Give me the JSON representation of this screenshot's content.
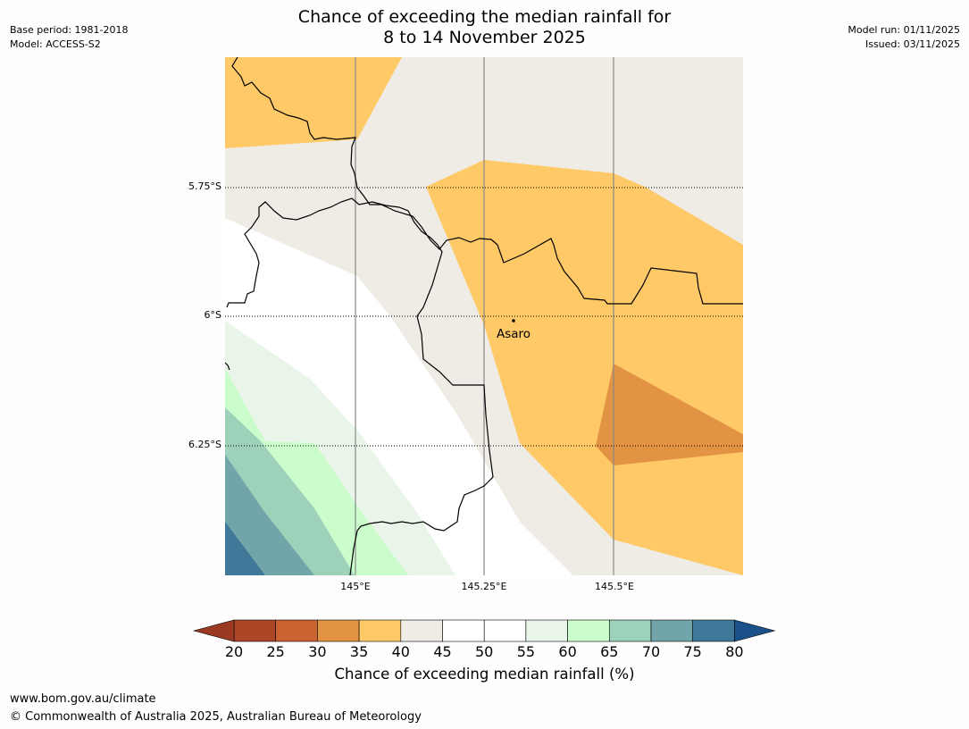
{
  "title": {
    "line1": "Chance of exceeding the median rainfall for",
    "line2": "8 to 14 November 2025"
  },
  "meta_left": {
    "base_period": "Base period: 1981-2018",
    "model": "Model: ACCESS-S2"
  },
  "meta_right": {
    "model_run": "Model run: 01/11/2025",
    "issued": "Issued: 03/11/2025"
  },
  "map": {
    "lat_labels": [
      "5.75°S",
      "6°S",
      "6.25°S"
    ],
    "lon_labels": [
      "145°E",
      "145.25°E",
      "145.5°E"
    ],
    "place_label": "Asaro"
  },
  "legend": {
    "ticks": [
      "20",
      "25",
      "30",
      "35",
      "40",
      "45",
      "50",
      "55",
      "60",
      "65",
      "70",
      "75",
      "80"
    ],
    "colors": [
      "#ad4527",
      "#cb6231",
      "#e29344",
      "#fec966",
      "#efebe5",
      "#ffffff",
      "#ffffff",
      "#eaf5ea",
      "#cbfdcc",
      "#9ed1b9",
      "#72a5a9",
      "#3f7898"
    ],
    "under_color": "#9a3a22",
    "over_color": "#1b518b",
    "label": "Chance of exceeding median rainfall (%)"
  },
  "footer": {
    "url": "www.bom.gov.au/climate",
    "copyright": "© Commonwealth of Australia 2025, Australian Bureau of Meteorology"
  }
}
